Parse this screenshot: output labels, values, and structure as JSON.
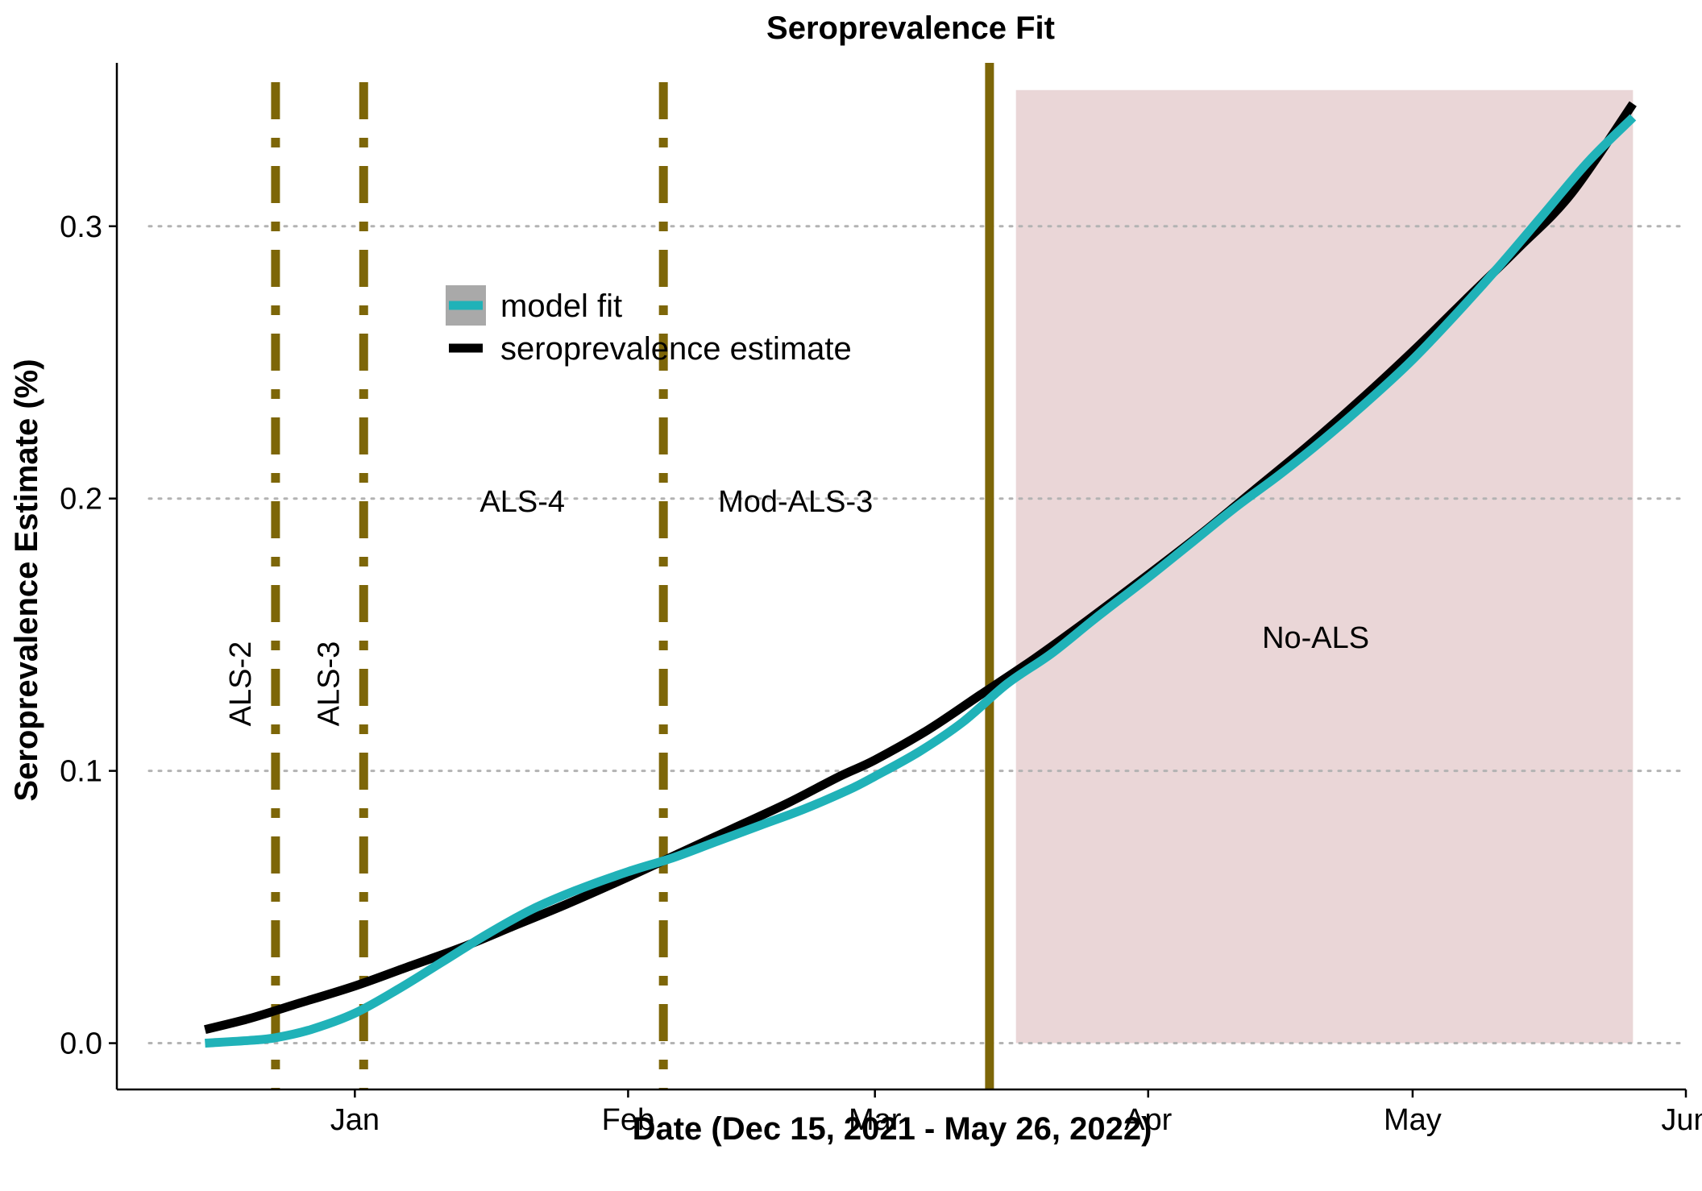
{
  "chart_data": {
    "type": "line",
    "title": "Seroprevalence Fit",
    "xlabel": "Date (Dec 15, 2021 - May 26, 2022)",
    "ylabel": "Seroprevalence Estimate (%)",
    "xlim": [
      "2021-12-05",
      "2022-06-01"
    ],
    "ylim": [
      -0.017,
      0.36
    ],
    "x_ticks": [
      {
        "date": "2022-01-01",
        "label": "Jan"
      },
      {
        "date": "2022-02-01",
        "label": "Feb"
      },
      {
        "date": "2022-03-01",
        "label": "Mar"
      },
      {
        "date": "2022-04-01",
        "label": "Apr"
      },
      {
        "date": "2022-05-01",
        "label": "May"
      },
      {
        "date": "2022-06-01",
        "label": "Jun"
      }
    ],
    "y_ticks": [
      {
        "value": 0.0,
        "label": "0.0"
      },
      {
        "value": 0.1,
        "label": "0.1"
      },
      {
        "value": 0.2,
        "label": "0.2"
      },
      {
        "value": 0.3,
        "label": "0.3"
      }
    ],
    "grid": "horizontal dotted",
    "series": [
      {
        "name": "model fit",
        "color": "#20b2b8",
        "points": [
          [
            "2021-12-15",
            0.0
          ],
          [
            "2021-12-20",
            0.001
          ],
          [
            "2021-12-23",
            0.002
          ],
          [
            "2021-12-27",
            0.005
          ],
          [
            "2022-01-01",
            0.011
          ],
          [
            "2022-01-06",
            0.02
          ],
          [
            "2022-01-11",
            0.03
          ],
          [
            "2022-01-16",
            0.04
          ],
          [
            "2022-01-21",
            0.049
          ],
          [
            "2022-01-26",
            0.056
          ],
          [
            "2022-02-01",
            0.063
          ],
          [
            "2022-02-06",
            0.068
          ],
          [
            "2022-02-11",
            0.074
          ],
          [
            "2022-02-16",
            0.08
          ],
          [
            "2022-02-21",
            0.086
          ],
          [
            "2022-02-26",
            0.093
          ],
          [
            "2022-03-01",
            0.098
          ],
          [
            "2022-03-06",
            0.107
          ],
          [
            "2022-03-11",
            0.118
          ],
          [
            "2022-03-16",
            0.132
          ],
          [
            "2022-03-21",
            0.143
          ],
          [
            "2022-03-26",
            0.156
          ],
          [
            "2022-04-01",
            0.171
          ],
          [
            "2022-04-06",
            0.184
          ],
          [
            "2022-04-11",
            0.197
          ],
          [
            "2022-04-16",
            0.209
          ],
          [
            "2022-04-21",
            0.222
          ],
          [
            "2022-04-26",
            0.236
          ],
          [
            "2022-05-01",
            0.251
          ],
          [
            "2022-05-06",
            0.268
          ],
          [
            "2022-05-11",
            0.286
          ],
          [
            "2022-05-16",
            0.305
          ],
          [
            "2022-05-21",
            0.324
          ],
          [
            "2022-05-26",
            0.34
          ]
        ]
      },
      {
        "name": "seroprevalence estimate",
        "color": "#000000",
        "points": [
          [
            "2021-12-15",
            0.005
          ],
          [
            "2021-12-20",
            0.009
          ],
          [
            "2021-12-25",
            0.014
          ],
          [
            "2022-01-01",
            0.021
          ],
          [
            "2022-01-07",
            0.028
          ],
          [
            "2022-01-13",
            0.035
          ],
          [
            "2022-01-19",
            0.043
          ],
          [
            "2022-01-25",
            0.051
          ],
          [
            "2022-02-01",
            0.061
          ],
          [
            "2022-02-07",
            0.07
          ],
          [
            "2022-02-13",
            0.079
          ],
          [
            "2022-02-19",
            0.088
          ],
          [
            "2022-02-25",
            0.098
          ],
          [
            "2022-03-01",
            0.104
          ],
          [
            "2022-03-07",
            0.115
          ],
          [
            "2022-03-13",
            0.128
          ],
          [
            "2022-03-19",
            0.141
          ],
          [
            "2022-03-25",
            0.155
          ],
          [
            "2022-04-01",
            0.172
          ],
          [
            "2022-04-07",
            0.187
          ],
          [
            "2022-04-13",
            0.203
          ],
          [
            "2022-04-19",
            0.219
          ],
          [
            "2022-04-25",
            0.236
          ],
          [
            "2022-05-01",
            0.254
          ],
          [
            "2022-05-07",
            0.273
          ],
          [
            "2022-05-13",
            0.292
          ],
          [
            "2022-05-19",
            0.312
          ],
          [
            "2022-05-26",
            0.345
          ]
        ]
      }
    ],
    "legend": {
      "placement": "upper-middle",
      "items": [
        {
          "label": "model fit",
          "color": "#20b2b8",
          "fill": "#a9a9a9"
        },
        {
          "label": "seroprevalence estimate",
          "color": "#000000"
        }
      ]
    },
    "vertical_lines": [
      {
        "date": "2021-12-23",
        "style": "dotdash",
        "color": "#7d6608"
      },
      {
        "date": "2022-01-02",
        "style": "dotdash",
        "color": "#7d6608"
      },
      {
        "date": "2022-02-05",
        "style": "dotdash",
        "color": "#7d6608"
      },
      {
        "date": "2022-03-14",
        "style": "solid",
        "color": "#7d6608"
      }
    ],
    "shaded_region": {
      "x_start": "2022-03-17",
      "x_end": "2022-05-26",
      "y_start": 0.0,
      "y_end": 0.35,
      "color": "#ead6d7"
    },
    "annotations": [
      {
        "text": "ALS-2",
        "date": "2021-12-19",
        "y": 0.132,
        "rotate": true
      },
      {
        "text": "ALS-3",
        "date": "2021-12-29",
        "y": 0.132,
        "rotate": true
      },
      {
        "text": "ALS-4",
        "date": "2022-01-20",
        "y": 0.199,
        "rotate": false
      },
      {
        "text": "Mod-ALS-3",
        "date": "2022-02-20",
        "y": 0.199,
        "rotate": false
      },
      {
        "text": "No-ALS",
        "date": "2022-04-20",
        "y": 0.149,
        "rotate": false
      }
    ]
  }
}
